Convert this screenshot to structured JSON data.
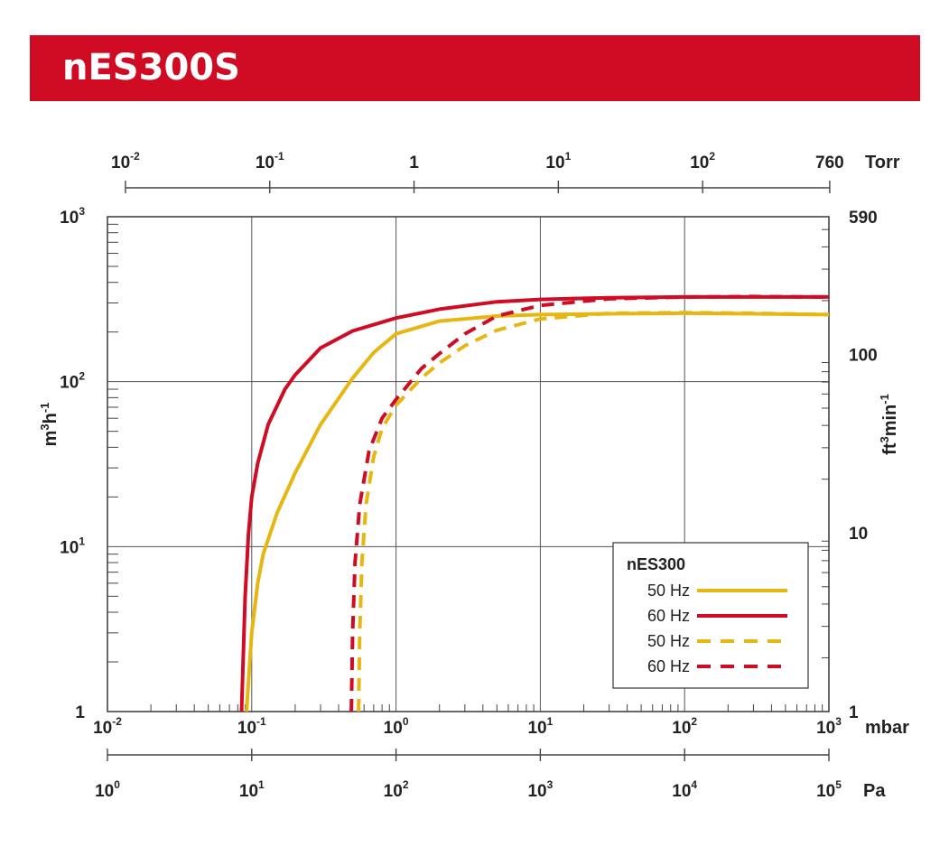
{
  "header": {
    "title": "nES300S",
    "bg_color": "#d00c24",
    "text_color": "#ffffff"
  },
  "chart_data": {
    "type": "line",
    "title": "",
    "x_scale": "log",
    "y_scale": "log",
    "xlim": [
      0.01,
      1000
    ],
    "ylim": [
      1,
      1000
    ],
    "grid": true,
    "axes": {
      "x_bottom": {
        "unit": "mbar",
        "ticks": [
          {
            "base": "10",
            "exp": "-2"
          },
          {
            "base": "10",
            "exp": "-1"
          },
          {
            "base": "10",
            "exp": "0"
          },
          {
            "base": "10",
            "exp": "1"
          },
          {
            "base": "10",
            "exp": "2"
          },
          {
            "base": "10",
            "exp": "3"
          }
        ]
      },
      "x_pa": {
        "unit": "Pa",
        "ticks": [
          {
            "base": "10",
            "exp": "0"
          },
          {
            "base": "10",
            "exp": "1"
          },
          {
            "base": "10",
            "exp": "2"
          },
          {
            "base": "10",
            "exp": "3"
          },
          {
            "base": "10",
            "exp": "4"
          },
          {
            "base": "10",
            "exp": "5"
          }
        ]
      },
      "x_top": {
        "unit": "Torr",
        "ticks": [
          {
            "value": 0.01,
            "base": "10",
            "exp": "-2"
          },
          {
            "value": 0.1,
            "base": "10",
            "exp": "-1"
          },
          {
            "value": 1,
            "base": "1",
            "exp": ""
          },
          {
            "value": 10,
            "base": "10",
            "exp": "1"
          },
          {
            "value": 100,
            "base": "10",
            "exp": "2"
          },
          {
            "value": 760,
            "base": "760",
            "exp": ""
          }
        ]
      },
      "y_left": {
        "label_base": "m",
        "label_exp1": "3",
        "label_mid": "h",
        "label_exp2": "-1",
        "ticks": [
          {
            "value": 1,
            "base": "1",
            "exp": ""
          },
          {
            "value": 10,
            "base": "10",
            "exp": "1"
          },
          {
            "value": 100,
            "base": "10",
            "exp": "2"
          },
          {
            "value": 1000,
            "base": "10",
            "exp": "3"
          }
        ]
      },
      "y_right": {
        "label_base": "ft",
        "label_exp1": "3",
        "label_mid": "min",
        "label_exp2": "-1",
        "ticks": [
          {
            "value": 1,
            "label": "1"
          },
          {
            "value": 10,
            "label": "10"
          },
          {
            "value": 100,
            "label": "100"
          },
          {
            "value": 590,
            "label": "590"
          }
        ]
      }
    },
    "legend": {
      "title": "nES300",
      "position": "bottom-right",
      "entries": [
        {
          "label": "50 Hz",
          "color": "#e6b712",
          "style": "solid"
        },
        {
          "label": "60 Hz",
          "color": "#d00c24",
          "style": "solid"
        },
        {
          "label": "50 Hz",
          "color": "#e6b712",
          "style": "dashed"
        },
        {
          "label": "60 Hz",
          "color": "#d00c24",
          "style": "dashed"
        }
      ]
    },
    "series": [
      {
        "name": "50 Hz",
        "style": "solid",
        "color": "#e6b712",
        "x": [
          0.092,
          0.1,
          0.11,
          0.12,
          0.15,
          0.2,
          0.3,
          0.5,
          0.7,
          1,
          2,
          5,
          10,
          30,
          100,
          300,
          1000
        ],
        "y": [
          1,
          3,
          6,
          9,
          16,
          28,
          55,
          105,
          150,
          195,
          233,
          250,
          255,
          258,
          260,
          258,
          255
        ]
      },
      {
        "name": "60 Hz",
        "style": "solid",
        "color": "#d00c24",
        "x": [
          0.085,
          0.09,
          0.095,
          0.1,
          0.11,
          0.13,
          0.17,
          0.2,
          0.3,
          0.5,
          1,
          2,
          5,
          10,
          30,
          100,
          300,
          1000
        ],
        "y": [
          1,
          5,
          12,
          20,
          32,
          55,
          90,
          110,
          160,
          203,
          243,
          275,
          305,
          315,
          323,
          326,
          326,
          326
        ]
      },
      {
        "name": "50 Hz",
        "style": "dashed",
        "color": "#e6b712",
        "x": [
          0.55,
          0.56,
          0.58,
          0.62,
          0.7,
          0.8,
          1,
          1.5,
          2,
          3,
          5,
          10,
          30,
          100,
          300,
          1000
        ],
        "y": [
          1,
          3,
          8,
          18,
          35,
          52,
          72,
          105,
          130,
          165,
          205,
          240,
          260,
          262,
          260,
          255
        ]
      },
      {
        "name": "60 Hz",
        "style": "dashed",
        "color": "#d00c24",
        "x": [
          0.49,
          0.5,
          0.52,
          0.56,
          0.65,
          0.8,
          1,
          1.5,
          2,
          3,
          5,
          10,
          30,
          100,
          300,
          1000
        ],
        "y": [
          1,
          3,
          8,
          18,
          38,
          60,
          78,
          120,
          148,
          195,
          250,
          290,
          318,
          326,
          328,
          326
        ]
      }
    ]
  }
}
